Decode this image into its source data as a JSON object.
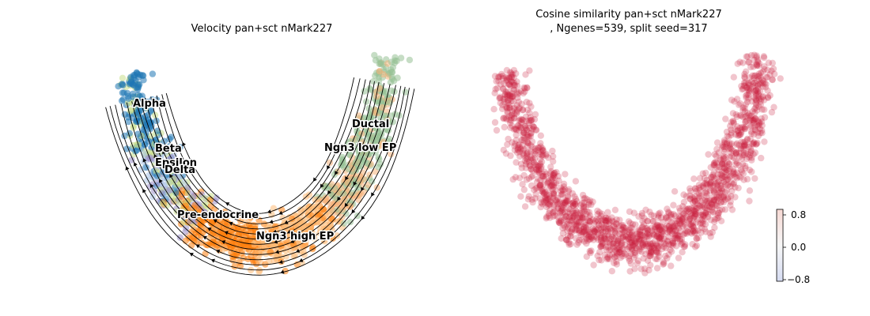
{
  "figure": {
    "left_title": "Velocity pan+sct nMark227",
    "right_title_line1": "Cosine similarity pan+sct nMark227",
    "right_title_line2": ", Ngenes=539, split seed=317"
  },
  "chart_data": [
    {
      "type": "scatter",
      "subtype": "umap-embedding-with-velocity-streamlines",
      "title": "Velocity pan+sct nMark227",
      "grid": false,
      "axes_visible": false,
      "cluster_colors": {
        "Alpha": "#1f77b4",
        "Beta": "#aec7e8",
        "Epsilon": "#9b8fc8",
        "Delta": "#c9df8a",
        "Pre-endocrine": "#ff7f0e",
        "Ngn3 high EP": "#ffbb78",
        "Ngn3 low EP": "#f5b27a",
        "Ductal": "#98c196"
      },
      "cluster_labels": [
        "Alpha",
        "Beta",
        "Epsilon",
        "Delta",
        "Pre-endocrine",
        "Ngn3 high EP",
        "Ngn3 low EP",
        "Ductal"
      ],
      "streamline_color": "#000000"
    },
    {
      "type": "scatter",
      "subtype": "umap-embedding-colored-by-value",
      "title": "Cosine similarity pan+sct nMark227\n, Ngenes=539, split seed=317",
      "grid": false,
      "axes_visible": false,
      "point_color": "#c81d3c",
      "colorbar": {
        "colormap": "RdBu_r",
        "range": [
          -1,
          1
        ],
        "ticks": [
          "0.8",
          "0.0",
          "−0.8"
        ],
        "colors": {
          "low": "#d6dcf2",
          "mid": "#f7f7f7",
          "high": "#f7d9d4"
        }
      }
    }
  ]
}
